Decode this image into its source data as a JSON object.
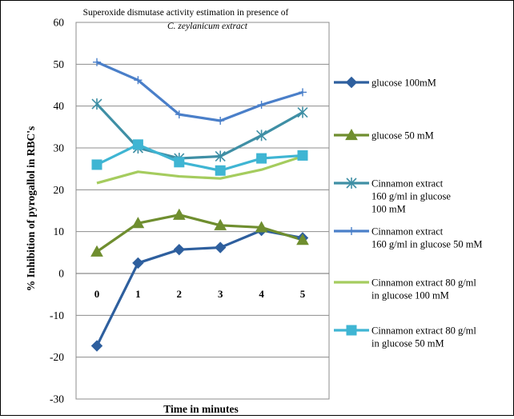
{
  "chart_data": {
    "type": "line",
    "title": "Superoxide dismutase activity estimation in presence of",
    "subtitle": "C. zeylanicum extract",
    "xlabel": "Time in minutes",
    "ylabel": "% Inhibition of pyrogallol in RBC's",
    "ylim": [
      -30,
      60
    ],
    "y_step": 10,
    "categories": [
      "0",
      "1",
      "2",
      "3",
      "4",
      "5"
    ],
    "grid": "horizontal",
    "legend_position": "right",
    "series": [
      {
        "name": "glucose 100mM",
        "legend_lines": [
          "glucose 100mM"
        ],
        "values": [
          -17.3,
          2.5,
          5.7,
          6.2,
          10.3,
          8.5
        ],
        "color": "#2e5f9e",
        "marker": "diamond"
      },
      {
        "name": "glucose 50 mM",
        "legend_lines": [
          "glucose 50 mM"
        ],
        "values": [
          5.2,
          12.0,
          14.0,
          11.5,
          11.0,
          8.0
        ],
        "color": "#6f8e2f",
        "marker": "triangle"
      },
      {
        "name": "Cinnamon extract 160 g/ml in glucose 100 mM",
        "legend_lines": [
          "Cinnamon extract",
          "160   g/ml in glucose",
          "100 mM"
        ],
        "values": [
          40.5,
          30.0,
          27.5,
          28.0,
          33.0,
          38.5
        ],
        "color": "#3f8fa5",
        "marker": "star"
      },
      {
        "name": "Cinnamon extract 160 g/ml in glucose 50 mM",
        "legend_lines": [
          "Cinnamon extract",
          "160   g/ml in glucose 50 mM"
        ],
        "values": [
          50.5,
          46.2,
          38.0,
          36.5,
          40.3,
          43.3
        ],
        "color": "#4a7fc9",
        "marker": "plus"
      },
      {
        "name": "Cinnamon extract 80 g/ml in glucose 100 mM",
        "legend_lines": [
          "Cinnamon extract 80   g/ml",
          "in glucose 100 mM"
        ],
        "values": [
          21.6,
          24.3,
          23.2,
          22.7,
          24.8,
          28.0
        ],
        "color": "#a5cc5e",
        "marker": "none"
      },
      {
        "name": "Cinnamon extract 80 g/ml in glucose 50 mM",
        "legend_lines": [
          "Cinnamon extract 80   g/ml",
          "in glucose 50 mM"
        ],
        "values": [
          26.0,
          30.8,
          26.6,
          24.6,
          27.5,
          28.2
        ],
        "color": "#3fb5d3",
        "marker": "square"
      }
    ]
  }
}
